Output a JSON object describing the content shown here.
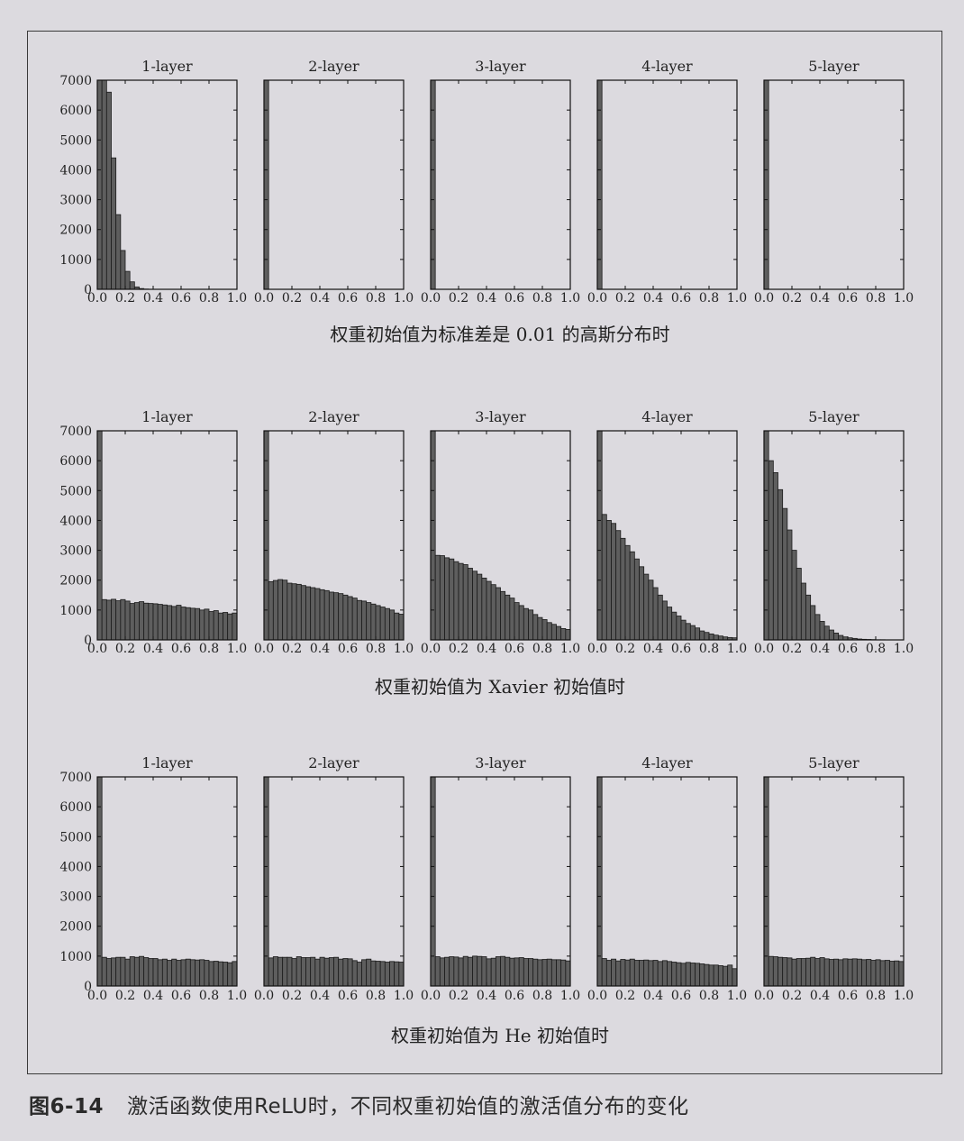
{
  "caption": {
    "number": "图6-14",
    "text": "激活函数使用ReLU时，不同权重初始值的激活值分布的变化"
  },
  "style": {
    "bar_color": "#5e5e5e",
    "bar_edge": "#1a1a1a",
    "background": "#dcdadf"
  },
  "chart_data": [
    {
      "type": "bar",
      "group_title": "权重初始值为标准差是 0.01 的高斯分布时",
      "x_ticks": [
        "0.0",
        "0.2",
        "0.4",
        "0.6",
        "0.8",
        "1.0"
      ],
      "y_ticks": [
        "0",
        "1000",
        "2000",
        "3000",
        "4000",
        "5000",
        "6000",
        "7000"
      ],
      "xlim": [
        0,
        1
      ],
      "ylim": [
        0,
        7000
      ],
      "bins": 30,
      "panels": [
        {
          "title": "1-layer",
          "values": [
            7000,
            7000,
            6600,
            4400,
            2500,
            1300,
            600,
            250,
            80,
            25,
            8,
            2,
            0,
            0,
            0,
            0,
            0,
            0,
            0,
            0,
            0,
            0,
            0,
            0,
            0,
            0,
            0,
            0,
            0,
            0
          ]
        },
        {
          "title": "2-layer",
          "values": [
            7000,
            0,
            0,
            0,
            0,
            0,
            0,
            0,
            0,
            0,
            0,
            0,
            0,
            0,
            0,
            0,
            0,
            0,
            0,
            0,
            0,
            0,
            0,
            0,
            0,
            0,
            0,
            0,
            0,
            0
          ]
        },
        {
          "title": "3-layer",
          "values": [
            7000,
            0,
            0,
            0,
            0,
            0,
            0,
            0,
            0,
            0,
            0,
            0,
            0,
            0,
            0,
            0,
            0,
            0,
            0,
            0,
            0,
            0,
            0,
            0,
            0,
            0,
            0,
            0,
            0,
            0
          ]
        },
        {
          "title": "4-layer",
          "values": [
            7000,
            0,
            0,
            0,
            0,
            0,
            0,
            0,
            0,
            0,
            0,
            0,
            0,
            0,
            0,
            0,
            0,
            0,
            0,
            0,
            0,
            0,
            0,
            0,
            0,
            0,
            0,
            0,
            0,
            0
          ]
        },
        {
          "title": "5-layer",
          "values": [
            7000,
            0,
            0,
            0,
            0,
            0,
            0,
            0,
            0,
            0,
            0,
            0,
            0,
            0,
            0,
            0,
            0,
            0,
            0,
            0,
            0,
            0,
            0,
            0,
            0,
            0,
            0,
            0,
            0,
            0
          ]
        }
      ]
    },
    {
      "type": "bar",
      "group_title": "权重初始值为 Xavier 初始值时",
      "x_ticks": [
        "0.0",
        "0.2",
        "0.4",
        "0.6",
        "0.8",
        "1.0"
      ],
      "y_ticks": [
        "0",
        "1000",
        "2000",
        "3000",
        "4000",
        "5000",
        "6000",
        "7000"
      ],
      "xlim": [
        0,
        1
      ],
      "ylim": [
        0,
        7000
      ],
      "bins": 30,
      "panels": [
        {
          "title": "1-layer",
          "values": [
            7000,
            1350,
            1330,
            1360,
            1310,
            1350,
            1300,
            1220,
            1250,
            1280,
            1230,
            1220,
            1210,
            1190,
            1170,
            1150,
            1120,
            1160,
            1100,
            1080,
            1060,
            1050,
            1000,
            1030,
            950,
            980,
            900,
            920,
            870,
            900
          ]
        },
        {
          "title": "2-layer",
          "values": [
            7000,
            1950,
            1990,
            2020,
            2000,
            1900,
            1880,
            1860,
            1820,
            1780,
            1750,
            1720,
            1680,
            1650,
            1600,
            1580,
            1550,
            1500,
            1450,
            1400,
            1320,
            1300,
            1250,
            1200,
            1150,
            1100,
            1050,
            1000,
            900,
            860
          ]
        },
        {
          "title": "3-layer",
          "values": [
            7000,
            2830,
            2820,
            2750,
            2710,
            2620,
            2560,
            2520,
            2400,
            2300,
            2200,
            2070,
            1960,
            1850,
            1750,
            1620,
            1500,
            1400,
            1250,
            1150,
            1050,
            1000,
            850,
            750,
            680,
            580,
            520,
            450,
            380,
            350
          ]
        },
        {
          "title": "4-layer",
          "values": [
            7000,
            4200,
            4000,
            3900,
            3660,
            3400,
            3160,
            2950,
            2710,
            2450,
            2200,
            2000,
            1750,
            1500,
            1300,
            1100,
            930,
            800,
            660,
            550,
            480,
            400,
            300,
            250,
            200,
            160,
            130,
            100,
            80,
            70
          ]
        },
        {
          "title": "5-layer",
          "values": [
            7000,
            6000,
            5600,
            5030,
            4400,
            3680,
            3000,
            2400,
            1900,
            1500,
            1150,
            850,
            620,
            460,
            330,
            230,
            150,
            100,
            70,
            50,
            30,
            20,
            15,
            10,
            5,
            5,
            3,
            2,
            1,
            1
          ]
        }
      ]
    },
    {
      "type": "bar",
      "group_title": "权重初始值为 He 初始值时",
      "x_ticks": [
        "0.0",
        "0.2",
        "0.4",
        "0.6",
        "0.8",
        "1.0"
      ],
      "y_ticks": [
        "0",
        "1000",
        "2000",
        "3000",
        "4000",
        "5000",
        "6000",
        "7000"
      ],
      "xlim": [
        0,
        1
      ],
      "ylim": [
        0,
        7000
      ],
      "bins": 30,
      "panels": [
        {
          "title": "1-layer",
          "values": [
            7000,
            960,
            920,
            940,
            960,
            960,
            900,
            980,
            960,
            990,
            950,
            920,
            920,
            880,
            900,
            860,
            900,
            860,
            880,
            900,
            880,
            870,
            880,
            860,
            820,
            830,
            810,
            800,
            780,
            820
          ]
        },
        {
          "title": "2-layer",
          "values": [
            7000,
            940,
            980,
            960,
            960,
            960,
            920,
            980,
            950,
            950,
            960,
            900,
            960,
            930,
            950,
            960,
            900,
            920,
            910,
            850,
            800,
            880,
            900,
            840,
            830,
            820,
            800,
            820,
            810,
            800
          ]
        },
        {
          "title": "3-layer",
          "values": [
            7000,
            980,
            940,
            960,
            980,
            970,
            940,
            990,
            960,
            1000,
            990,
            980,
            910,
            930,
            980,
            990,
            960,
            930,
            940,
            950,
            920,
            920,
            900,
            880,
            890,
            900,
            880,
            880,
            870,
            840
          ]
        },
        {
          "title": "4-layer",
          "values": [
            7000,
            920,
            860,
            900,
            840,
            890,
            870,
            900,
            860,
            860,
            870,
            850,
            860,
            820,
            850,
            820,
            800,
            780,
            760,
            790,
            770,
            760,
            740,
            720,
            700,
            700,
            680,
            660,
            700,
            580
          ]
        },
        {
          "title": "5-layer",
          "values": [
            7000,
            990,
            980,
            960,
            950,
            940,
            900,
            920,
            920,
            930,
            960,
            920,
            950,
            910,
            890,
            900,
            880,
            910,
            900,
            910,
            900,
            880,
            890,
            860,
            880,
            850,
            860,
            830,
            840,
            820
          ]
        }
      ]
    }
  ]
}
